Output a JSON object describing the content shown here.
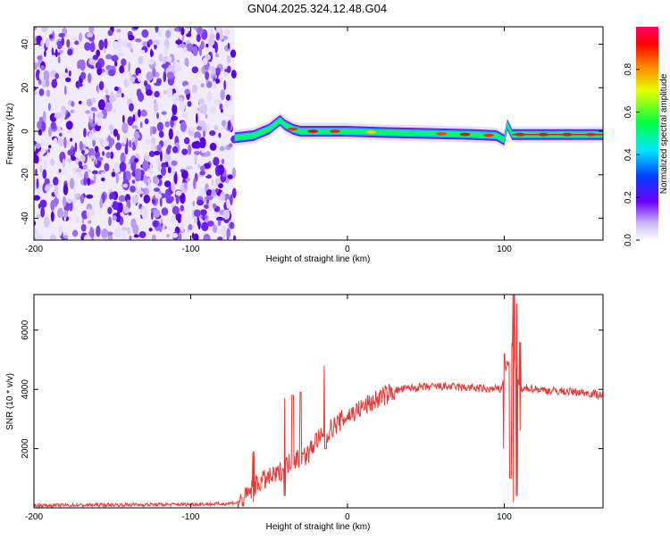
{
  "title": "GN04.2025.324.12.48.G04",
  "colors": {
    "signal": "#e53935",
    "background": "#ffffff",
    "axes": "#000000"
  },
  "chart_data": [
    {
      "type": "heatmap",
      "name": "spectrogram",
      "xlabel": "Height of straight line (km)",
      "ylabel": "Frequency (Hz)",
      "xlim": [
        -200,
        163
      ],
      "ylim": [
        -50,
        48
      ],
      "x_ticks": [
        "-200",
        "-100",
        "0",
        "100"
      ],
      "y_ticks": [
        "40",
        "20",
        "0",
        "-20",
        "-40"
      ],
      "noise_region_x": [
        -200,
        -72
      ],
      "ridge": {
        "description": "carrier line near 0 Hz",
        "x": [
          -72,
          -60,
          -50,
          -43,
          -40,
          -35,
          -30,
          -20,
          -10,
          0,
          20,
          50,
          80,
          95,
          100,
          102,
          105,
          120,
          163
        ],
        "y": [
          -3,
          -2,
          1,
          5,
          3,
          1,
          0,
          0,
          0,
          0,
          -0.5,
          -1,
          -1.5,
          -2,
          -4,
          3,
          -1.5,
          -1.5,
          -1.5
        ]
      },
      "colorbar": {
        "label": "Normalized spectral amplitude",
        "ticks": [
          "0.0",
          "0.2",
          "0.4",
          "0.6",
          "0.8"
        ],
        "range": [
          0,
          1
        ]
      }
    },
    {
      "type": "line",
      "name": "snr",
      "xlabel": "Height of straight line (km)",
      "ylabel": "SNR (10 * v/v)",
      "xlim": [
        -200,
        163
      ],
      "ylim": [
        0,
        7200
      ],
      "x_ticks": [
        "-200",
        "-100",
        "0",
        "100"
      ],
      "y_ticks": [
        "6000",
        "4000",
        "2000"
      ],
      "series": [
        {
          "name": "SNR",
          "x": [
            -200,
            -150,
            -100,
            -80,
            -70,
            -65,
            -60,
            -55,
            -50,
            -45,
            -40,
            -35,
            -30,
            -25,
            -20,
            -15,
            -10,
            -5,
            0,
            10,
            20,
            30,
            40,
            60,
            80,
            90,
            98,
            100,
            103,
            105,
            108,
            110,
            115,
            130,
            150,
            163
          ],
          "y": [
            80,
            100,
            120,
            130,
            180,
            350,
            700,
            900,
            1000,
            1100,
            1400,
            1600,
            1700,
            1800,
            2300,
            2400,
            2700,
            2900,
            3100,
            3400,
            3700,
            3950,
            4050,
            4100,
            4050,
            4000,
            4000,
            4600,
            5000,
            5500,
            4500,
            3900,
            4050,
            3950,
            3900,
            3800
          ]
        }
      ],
      "spikes": [
        {
          "x": -60,
          "peak": 1900,
          "trough": 200
        },
        {
          "x": -40,
          "peak": 3700,
          "trough": 400
        },
        {
          "x": -35,
          "peak": 3800,
          "trough": 300
        },
        {
          "x": -30,
          "peak": 3900,
          "trough": 600
        },
        {
          "x": -15,
          "peak": 4800,
          "trough": 2400
        },
        {
          "x": -14,
          "peak": 2000,
          "trough": 2000
        },
        {
          "x": 100,
          "peak": 5200,
          "trough": 2000
        },
        {
          "x": 104,
          "peak": 6600,
          "trough": 1000
        },
        {
          "x": 106,
          "peak": 7200,
          "trough": 200
        },
        {
          "x": 108,
          "peak": 6900,
          "trough": 400
        },
        {
          "x": 110,
          "peak": 5600,
          "trough": 2600
        }
      ]
    }
  ]
}
